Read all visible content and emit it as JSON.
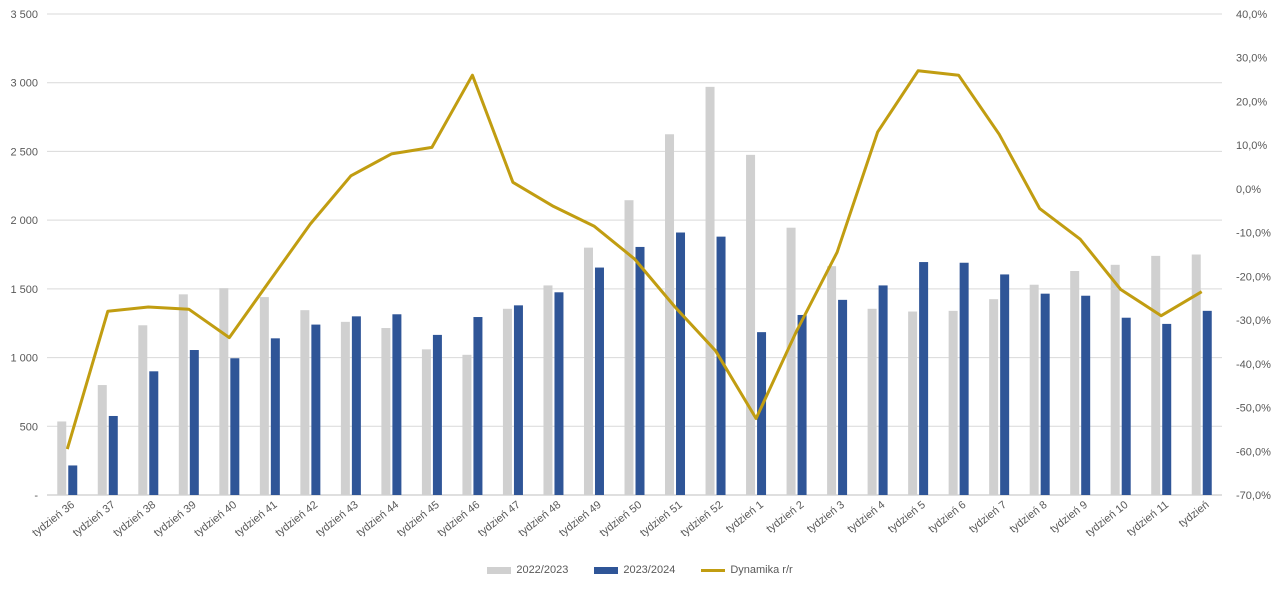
{
  "chart_data": {
    "type": "bar",
    "categories": [
      "tydzień 36",
      "tydzień 37",
      "tydzień 38",
      "tydzień 39",
      "tydzień 40",
      "tydzień 41",
      "tydzień 42",
      "tydzień 43",
      "tydzień 44",
      "tydzień 45",
      "tydzień 46",
      "tydzień 47",
      "tydzień 48",
      "tydzień 49",
      "tydzień 50",
      "tydzień 51",
      "tydzień 52",
      "tydzień 1",
      "tydzień 2",
      "tydzień 3",
      "tydzień 4",
      "tydzień 5",
      "tydzień 6",
      "tydzień 7",
      "tydzień 8",
      "tydzień 9",
      "tydzień 10",
      "tydzień 11",
      "tydzień"
    ],
    "series": [
      {
        "name": "2022/2023",
        "axis": "left",
        "color": "#d0d0d0",
        "values": [
          535,
          800,
          1235,
          1460,
          1505,
          1440,
          1345,
          1260,
          1215,
          1060,
          1020,
          1355,
          1525,
          1800,
          2145,
          2625,
          2970,
          2475,
          1945,
          1665,
          1355,
          1335,
          1340,
          1425,
          1530,
          1630,
          1675,
          1740,
          1750
        ]
      },
      {
        "name": "2023/2024",
        "axis": "left",
        "color": "#2f5597",
        "values": [
          215,
          575,
          900,
          1055,
          995,
          1140,
          1240,
          1300,
          1315,
          1165,
          1295,
          1380,
          1475,
          1655,
          1805,
          1910,
          1880,
          1185,
          1310,
          1420,
          1525,
          1695,
          1690,
          1605,
          1465,
          1450,
          1290,
          1245,
          1340
        ]
      },
      {
        "name": "Dynamika r/r",
        "axis": "right",
        "type": "line",
        "color": "#c19d11",
        "values": [
          -59.5,
          -28.0,
          -27.0,
          -27.5,
          -34.0,
          -21.0,
          -8.0,
          3.0,
          8.0,
          9.5,
          26.0,
          1.5,
          -4.0,
          -8.5,
          -16.0,
          -27.0,
          -37.0,
          -52.5,
          -32.5,
          -14.5,
          13.0,
          27.0,
          26.0,
          12.5,
          -4.5,
          -11.5,
          -23.0,
          -29.0,
          -23.5
        ]
      }
    ],
    "y_left": {
      "min": 0,
      "max": 3500,
      "ticks": [
        "-",
        "500",
        "1 000",
        "1 500",
        "2 000",
        "2 500",
        "3 000",
        "3 500"
      ]
    },
    "y_right": {
      "min": -70,
      "max": 40,
      "ticks": [
        "-70,0%",
        "-60,0%",
        "-50,0%",
        "-40,0%",
        "-30,0%",
        "-20,0%",
        "-10,0%",
        "0,0%",
        "10,0%",
        "20,0%",
        "30,0%",
        "40,0%"
      ]
    },
    "grid": true,
    "legend_position": "bottom"
  },
  "legend": {
    "items": [
      {
        "label": "2022/2023",
        "kind": "bar",
        "color": "#d0d0d0"
      },
      {
        "label": "2023/2024",
        "kind": "bar",
        "color": "#2f5597"
      },
      {
        "label": "Dynamika r/r",
        "kind": "line",
        "color": "#c19d11"
      }
    ]
  }
}
